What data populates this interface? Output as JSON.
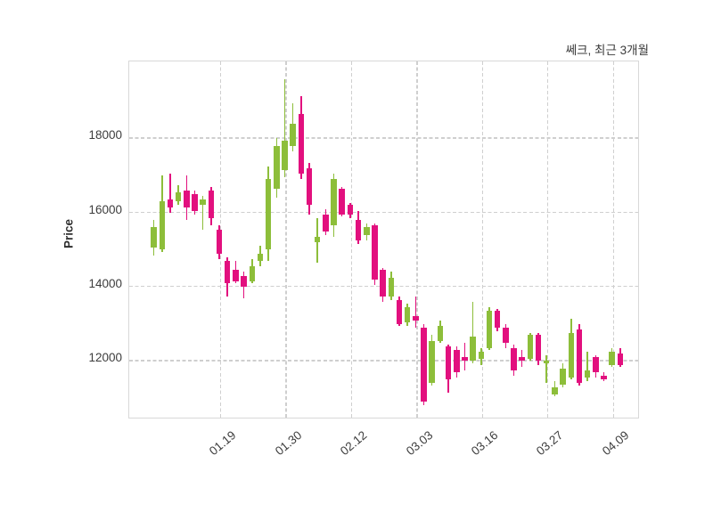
{
  "title": "쎄크, 최근 3개월",
  "y_axis": {
    "label": "Price",
    "ticks": [
      12000,
      14000,
      16000,
      18000
    ]
  },
  "x_axis": {
    "tick_labels": [
      "01.19",
      "01.30",
      "02.12",
      "03.03",
      "03.16",
      "03.27",
      "04.09"
    ]
  },
  "colors": {
    "up": "#8dbe3a",
    "down": "#e2107e",
    "grid": "#cfcfcf",
    "spine": "#d8d8d8",
    "text": "#3c3c3c",
    "background": "#ffffff"
  },
  "chart_data": {
    "type": "candlestick",
    "title": "쎄크, 최근 3개월",
    "ylabel": "Price",
    "ylim": [
      10400,
      20050
    ],
    "y_ticks": [
      12000,
      14000,
      16000,
      18000
    ],
    "grid": true,
    "x_tick_labels": [
      "01.19",
      "01.30",
      "02.12",
      "03.03",
      "03.16",
      "03.27",
      "04.09"
    ],
    "x_tick_indices": [
      8,
      16,
      24,
      32,
      40,
      48,
      56
    ],
    "columns": [
      "open",
      "high",
      "low",
      "close"
    ],
    "candles": [
      [
        15000,
        15750,
        14800,
        15550
      ],
      [
        14950,
        16950,
        14900,
        16250
      ],
      [
        16300,
        17000,
        15950,
        16100
      ],
      [
        16250,
        16700,
        16150,
        16500
      ],
      [
        16550,
        16950,
        15750,
        16100
      ],
      [
        16450,
        16550,
        15900,
        16000
      ],
      [
        16150,
        16400,
        15500,
        16300
      ],
      [
        16550,
        16650,
        15600,
        15800
      ],
      [
        15500,
        15600,
        14700,
        14850
      ],
      [
        14650,
        14750,
        13700,
        14050
      ],
      [
        14400,
        14650,
        14050,
        14100
      ],
      [
        14250,
        14350,
        13650,
        13950
      ],
      [
        14100,
        14700,
        14050,
        14500
      ],
      [
        14650,
        15050,
        14500,
        14850
      ],
      [
        14950,
        17200,
        14650,
        16850
      ],
      [
        16600,
        17950,
        16350,
        17750
      ],
      [
        17100,
        19550,
        16900,
        17900
      ],
      [
        17750,
        18900,
        17600,
        18350
      ],
      [
        18600,
        19100,
        16850,
        17000
      ],
      [
        17150,
        17300,
        15900,
        16150
      ],
      [
        15150,
        15800,
        14600,
        15300
      ],
      [
        15900,
        16050,
        15350,
        15450
      ],
      [
        15600,
        17000,
        15300,
        16850
      ],
      [
        16600,
        16650,
        15850,
        15900
      ],
      [
        16150,
        16200,
        15800,
        15900
      ],
      [
        15750,
        16000,
        15100,
        15200
      ],
      [
        15350,
        15650,
        15200,
        15550
      ],
      [
        15600,
        15650,
        14000,
        14150
      ],
      [
        14400,
        14450,
        13550,
        13700
      ],
      [
        13700,
        14350,
        13600,
        14200
      ],
      [
        13600,
        13700,
        12900,
        12950
      ],
      [
        13000,
        13500,
        12900,
        13400
      ],
      [
        13150,
        13700,
        12850,
        13050
      ],
      [
        12850,
        12950,
        10750,
        10850
      ],
      [
        11350,
        12650,
        11300,
        12500
      ],
      [
        12500,
        13050,
        12450,
        12900
      ],
      [
        12350,
        12400,
        11100,
        11450
      ],
      [
        12250,
        12350,
        11500,
        11650
      ],
      [
        12050,
        12450,
        11700,
        11950
      ],
      [
        11950,
        13550,
        11900,
        12600
      ],
      [
        12000,
        12300,
        11850,
        12200
      ],
      [
        12300,
        13400,
        12250,
        13300
      ],
      [
        13300,
        13350,
        12750,
        12850
      ],
      [
        12850,
        12950,
        12300,
        12450
      ],
      [
        12300,
        12400,
        11550,
        11700
      ],
      [
        12050,
        12250,
        11800,
        11950
      ],
      [
        12000,
        12700,
        11950,
        12650
      ],
      [
        12650,
        12700,
        11850,
        11950
      ],
      [
        11900,
        12100,
        11350,
        11950
      ],
      [
        11050,
        11400,
        11000,
        11250
      ],
      [
        11300,
        11900,
        11250,
        11750
      ],
      [
        11500,
        13100,
        11450,
        12700
      ],
      [
        12800,
        12950,
        11300,
        11350
      ],
      [
        11500,
        12200,
        11400,
        11700
      ],
      [
        12050,
        12100,
        11500,
        11650
      ],
      [
        11550,
        11650,
        11400,
        11450
      ],
      [
        11850,
        12300,
        11800,
        12200
      ],
      [
        12150,
        12300,
        11800,
        11850
      ]
    ]
  }
}
